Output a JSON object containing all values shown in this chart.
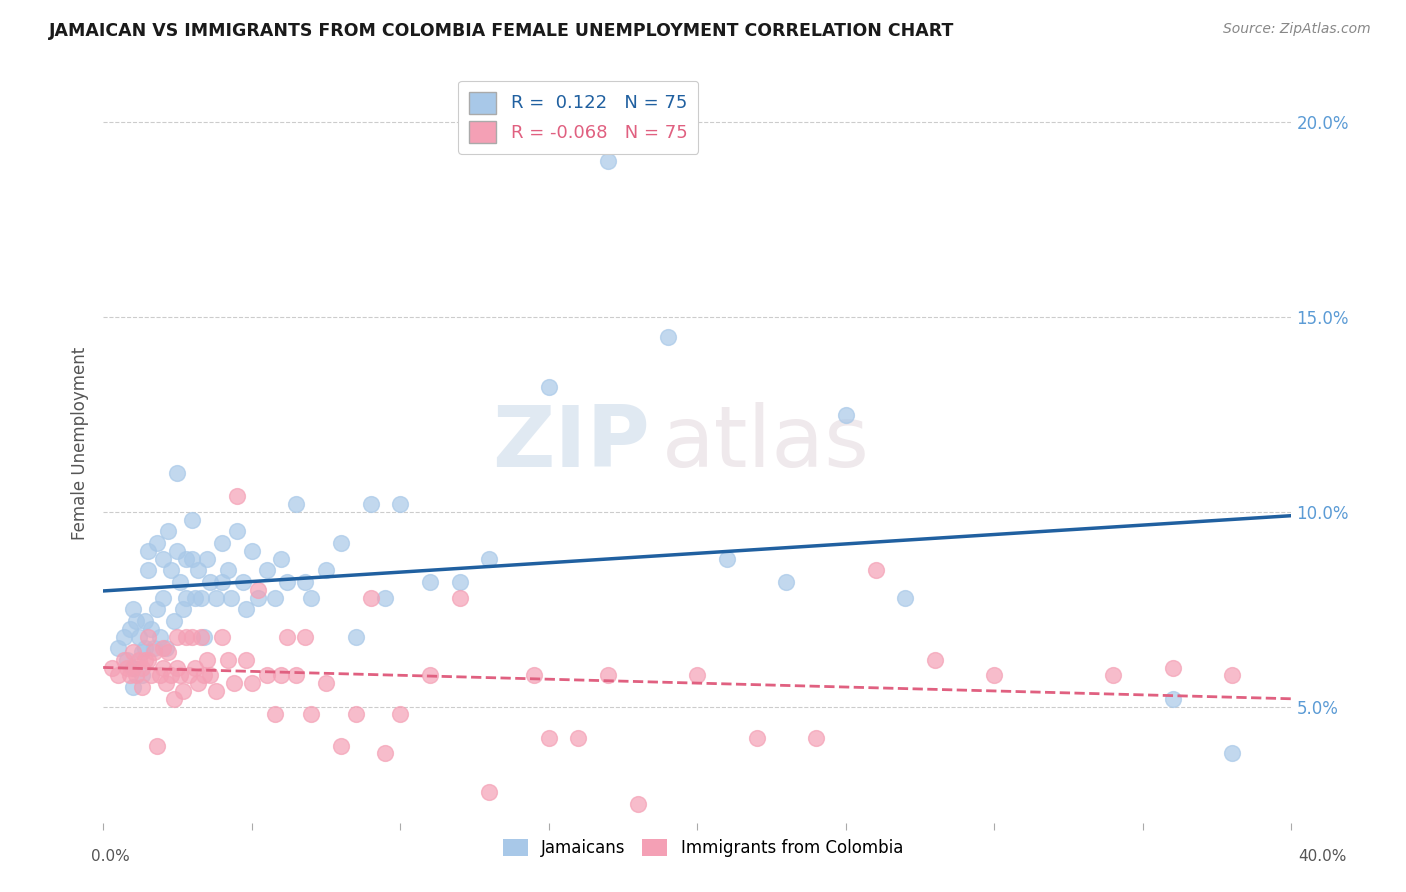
{
  "title": "JAMAICAN VS IMMIGRANTS FROM COLOMBIA FEMALE UNEMPLOYMENT CORRELATION CHART",
  "source": "Source: ZipAtlas.com",
  "ylabel": "Female Unemployment",
  "r_blue": 0.122,
  "n_blue": 75,
  "r_pink": -0.068,
  "n_pink": 75,
  "ytick_labels": [
    "5.0%",
    "10.0%",
    "15.0%",
    "20.0%"
  ],
  "ytick_values": [
    0.05,
    0.1,
    0.15,
    0.2
  ],
  "xlim": [
    0.0,
    0.4
  ],
  "ylim": [
    0.02,
    0.215
  ],
  "color_blue": "#a8c8e8",
  "color_pink": "#f4a0b5",
  "line_blue": "#2060a0",
  "line_pink": "#e06080",
  "background": "#ffffff",
  "watermark_zip": "ZIP",
  "watermark_atlas": "atlas",
  "blue_scatter_x": [
    0.005,
    0.007,
    0.008,
    0.009,
    0.01,
    0.01,
    0.01,
    0.011,
    0.012,
    0.013,
    0.013,
    0.014,
    0.014,
    0.015,
    0.015,
    0.016,
    0.017,
    0.018,
    0.018,
    0.019,
    0.02,
    0.02,
    0.021,
    0.022,
    0.023,
    0.024,
    0.025,
    0.025,
    0.026,
    0.027,
    0.028,
    0.028,
    0.03,
    0.03,
    0.031,
    0.032,
    0.033,
    0.034,
    0.035,
    0.036,
    0.038,
    0.04,
    0.04,
    0.042,
    0.043,
    0.045,
    0.047,
    0.048,
    0.05,
    0.052,
    0.055,
    0.058,
    0.06,
    0.062,
    0.065,
    0.068,
    0.07,
    0.075,
    0.08,
    0.085,
    0.09,
    0.095,
    0.1,
    0.11,
    0.12,
    0.13,
    0.15,
    0.17,
    0.19,
    0.21,
    0.23,
    0.25,
    0.27,
    0.36,
    0.38
  ],
  "blue_scatter_y": [
    0.065,
    0.068,
    0.062,
    0.07,
    0.075,
    0.06,
    0.055,
    0.072,
    0.068,
    0.064,
    0.058,
    0.072,
    0.065,
    0.09,
    0.085,
    0.07,
    0.065,
    0.092,
    0.075,
    0.068,
    0.088,
    0.078,
    0.065,
    0.095,
    0.085,
    0.072,
    0.11,
    0.09,
    0.082,
    0.075,
    0.088,
    0.078,
    0.098,
    0.088,
    0.078,
    0.085,
    0.078,
    0.068,
    0.088,
    0.082,
    0.078,
    0.092,
    0.082,
    0.085,
    0.078,
    0.095,
    0.082,
    0.075,
    0.09,
    0.078,
    0.085,
    0.078,
    0.088,
    0.082,
    0.102,
    0.082,
    0.078,
    0.085,
    0.092,
    0.068,
    0.102,
    0.078,
    0.102,
    0.082,
    0.082,
    0.088,
    0.132,
    0.19,
    0.145,
    0.088,
    0.082,
    0.125,
    0.078,
    0.052,
    0.038
  ],
  "pink_scatter_x": [
    0.003,
    0.005,
    0.007,
    0.008,
    0.009,
    0.01,
    0.01,
    0.011,
    0.012,
    0.013,
    0.013,
    0.014,
    0.015,
    0.015,
    0.016,
    0.017,
    0.018,
    0.019,
    0.02,
    0.02,
    0.021,
    0.022,
    0.023,
    0.024,
    0.025,
    0.025,
    0.026,
    0.027,
    0.028,
    0.029,
    0.03,
    0.031,
    0.032,
    0.033,
    0.034,
    0.035,
    0.036,
    0.038,
    0.04,
    0.042,
    0.044,
    0.045,
    0.048,
    0.05,
    0.052,
    0.055,
    0.058,
    0.06,
    0.062,
    0.065,
    0.068,
    0.07,
    0.075,
    0.08,
    0.085,
    0.09,
    0.095,
    0.1,
    0.11,
    0.12,
    0.13,
    0.145,
    0.15,
    0.16,
    0.17,
    0.18,
    0.2,
    0.22,
    0.24,
    0.26,
    0.28,
    0.3,
    0.34,
    0.36,
    0.38
  ],
  "pink_scatter_y": [
    0.06,
    0.058,
    0.062,
    0.06,
    0.058,
    0.064,
    0.06,
    0.058,
    0.062,
    0.06,
    0.055,
    0.062,
    0.068,
    0.062,
    0.058,
    0.064,
    0.04,
    0.058,
    0.065,
    0.06,
    0.056,
    0.064,
    0.058,
    0.052,
    0.068,
    0.06,
    0.058,
    0.054,
    0.068,
    0.058,
    0.068,
    0.06,
    0.056,
    0.068,
    0.058,
    0.062,
    0.058,
    0.054,
    0.068,
    0.062,
    0.056,
    0.104,
    0.062,
    0.056,
    0.08,
    0.058,
    0.048,
    0.058,
    0.068,
    0.058,
    0.068,
    0.048,
    0.056,
    0.04,
    0.048,
    0.078,
    0.038,
    0.048,
    0.058,
    0.078,
    0.028,
    0.058,
    0.042,
    0.042,
    0.058,
    0.025,
    0.058,
    0.042,
    0.042,
    0.085,
    0.062,
    0.058,
    0.058,
    0.06,
    0.058
  ]
}
